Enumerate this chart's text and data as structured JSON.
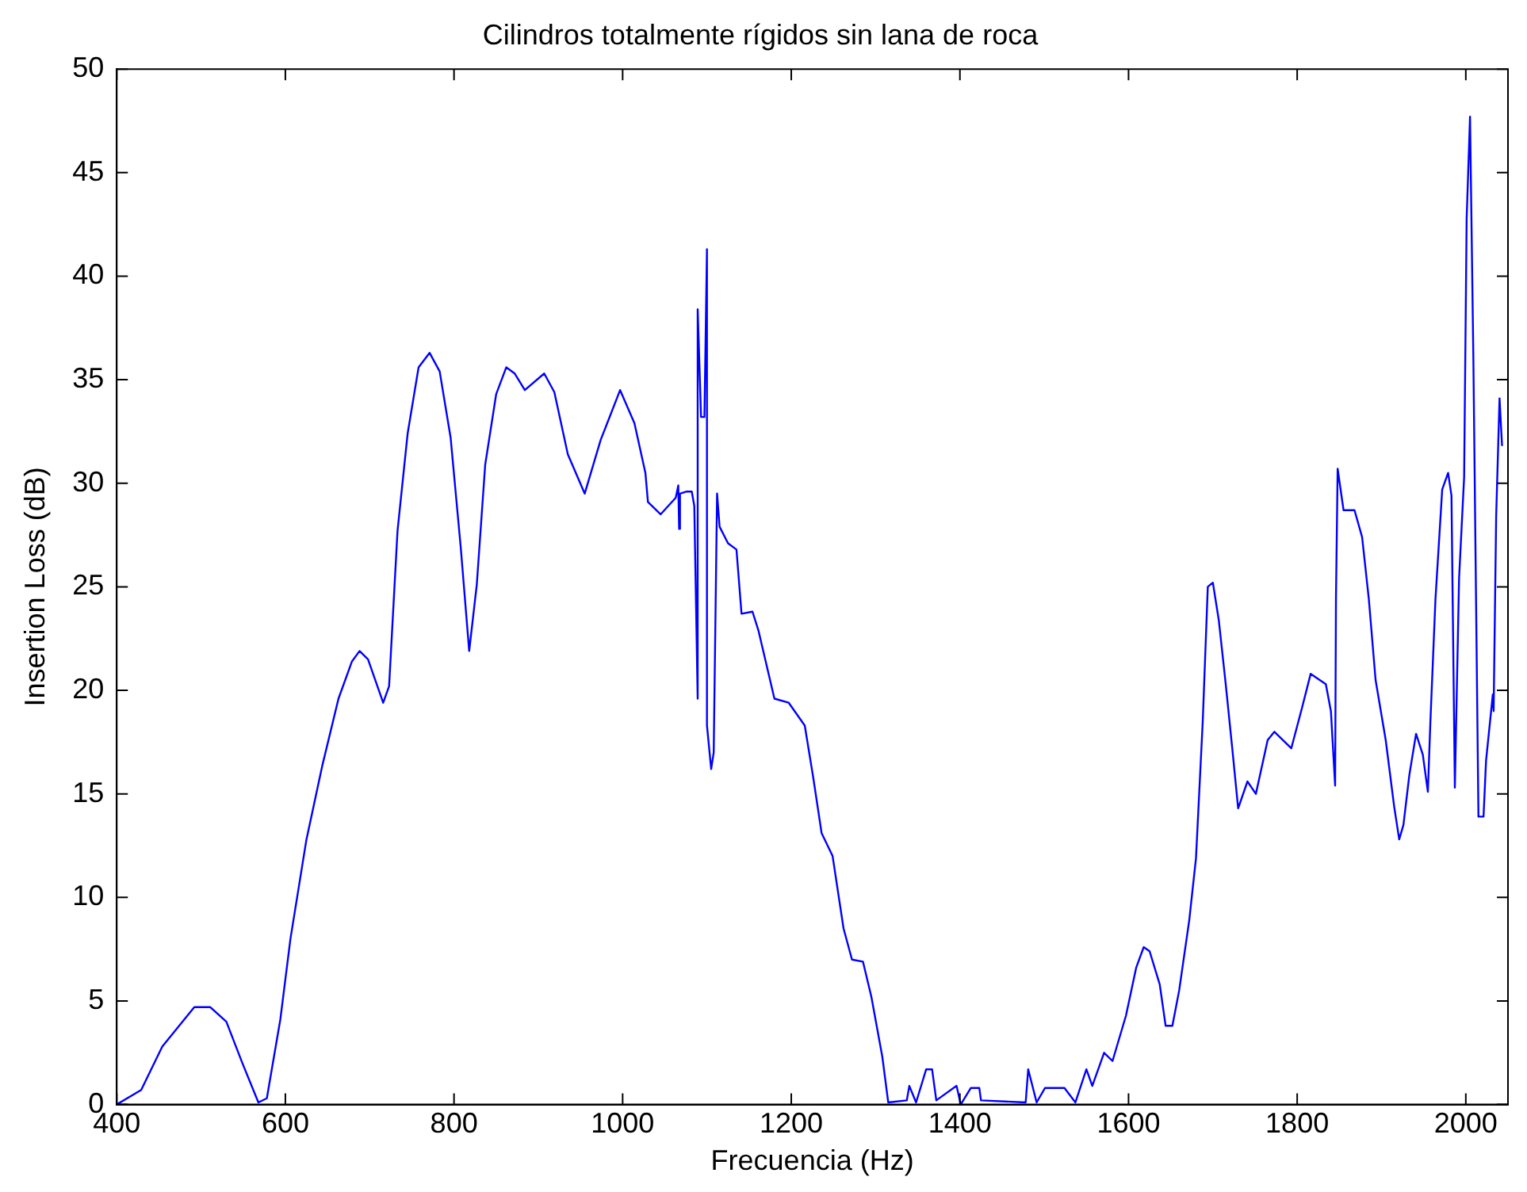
{
  "chart_data": {
    "type": "line",
    "title": "Cilindros totalmente rígidos sin lana de roca",
    "xlabel": "Frecuencia (Hz)",
    "ylabel": "Insertion Loss (dB)",
    "xlim": [
      400,
      2050
    ],
    "xticks": [
      400,
      600,
      800,
      1000,
      1200,
      1400,
      1600,
      1800,
      2000
    ],
    "ylim": [
      0,
      50
    ],
    "yticks": [
      0,
      5,
      10,
      15,
      20,
      25,
      30,
      35,
      40,
      45,
      50
    ],
    "grid": false,
    "legend": false,
    "marker": "none",
    "line_style": "solid",
    "series": [
      {
        "color": "#0000ff",
        "x": [
          400,
          429,
          454,
          492,
          511,
          530,
          549,
          568,
          578,
          594,
          606,
          625,
          644,
          663,
          679,
          688,
          698,
          716,
          723,
          733,
          745,
          758,
          771,
          783,
          796,
          808,
          818,
          827,
          837,
          850,
          862,
          872,
          884,
          907,
          919,
          935,
          955,
          974,
          997,
          1014,
          1027,
          1030,
          1045,
          1063,
          1066,
          1067,
          1068,
          1076,
          1082,
          1085,
          1089,
          1089,
          1093,
          1097,
          1100,
          1100,
          1105,
          1108,
          1112,
          1115,
          1125,
          1135,
          1141,
          1154,
          1161,
          1180,
          1197,
          1216,
          1226,
          1236,
          1249,
          1262,
          1272,
          1285,
          1295,
          1308,
          1315,
          1337,
          1340,
          1348,
          1360,
          1367,
          1372,
          1396,
          1401,
          1413,
          1423,
          1425,
          1478,
          1481,
          1491,
          1501,
          1524,
          1537,
          1550,
          1557,
          1571,
          1581,
          1597,
          1609,
          1618,
          1625,
          1637,
          1644,
          1652,
          1660,
          1672,
          1680,
          1688,
          1694,
          1700,
          1707,
          1715,
          1723,
          1730,
          1741,
          1751,
          1765,
          1773,
          1793,
          1806,
          1816,
          1834,
          1840,
          1845,
          1846,
          1848,
          1855,
          1868,
          1877,
          1885,
          1893,
          1905,
          1915,
          1921,
          1926,
          1933,
          1941,
          1949,
          1955,
          1958,
          1964,
          1972,
          1979,
          1983,
          1987,
          1992,
          1998,
          2001,
          2005,
          2009,
          2015,
          2021,
          2024,
          2032,
          2033,
          2036,
          2040,
          2043
        ],
        "values": [
          0,
          0.7,
          2.8,
          4.7,
          4.7,
          4.0,
          2.0,
          0.1,
          0.3,
          4.1,
          8.0,
          12.8,
          16.4,
          19.6,
          21.4,
          21.9,
          21.5,
          19.4,
          20.2,
          27.7,
          32.4,
          35.6,
          36.3,
          35.4,
          32.2,
          26.9,
          21.9,
          25.1,
          30.9,
          34.3,
          35.6,
          35.3,
          34.5,
          35.3,
          34.4,
          31.4,
          29.5,
          32.1,
          34.5,
          32.9,
          30.5,
          29.1,
          28.5,
          29.3,
          29.9,
          27.8,
          29.5,
          29.6,
          29.6,
          28.9,
          19.6,
          38.4,
          33.2,
          33.2,
          41.3,
          18.3,
          16.2,
          17.0,
          29.5,
          27.9,
          27.1,
          26.8,
          23.7,
          23.8,
          22.9,
          19.6,
          19.4,
          18.3,
          15.8,
          13.1,
          12.0,
          8.5,
          7.0,
          6.9,
          5.2,
          2.3,
          0.1,
          0.2,
          0.9,
          0.1,
          1.7,
          1.7,
          0.2,
          0.9,
          0,
          0.8,
          0.8,
          0.2,
          0.1,
          1.7,
          0.1,
          0.8,
          0.8,
          0.1,
          1.7,
          0.9,
          2.5,
          2.1,
          4.3,
          6.6,
          7.6,
          7.4,
          5.8,
          3.8,
          3.8,
          5.5,
          8.9,
          11.9,
          18.5,
          25.0,
          25.2,
          23.4,
          20.4,
          17.2,
          14.3,
          15.6,
          15.0,
          17.6,
          18.0,
          17.2,
          19.2,
          20.8,
          20.3,
          19.0,
          15.4,
          24.4,
          30.7,
          28.7,
          28.7,
          27.4,
          24.4,
          20.5,
          17.6,
          14.4,
          12.8,
          13.5,
          15.9,
          17.9,
          16.9,
          15.1,
          18.5,
          24.4,
          29.7,
          30.5,
          29.4,
          15.3,
          25.4,
          30.3,
          42.8,
          47.7,
          35.9,
          13.9,
          13.9,
          16.6,
          19.8,
          19.0,
          28.4,
          34.1,
          31.8
        ]
      }
    ]
  }
}
